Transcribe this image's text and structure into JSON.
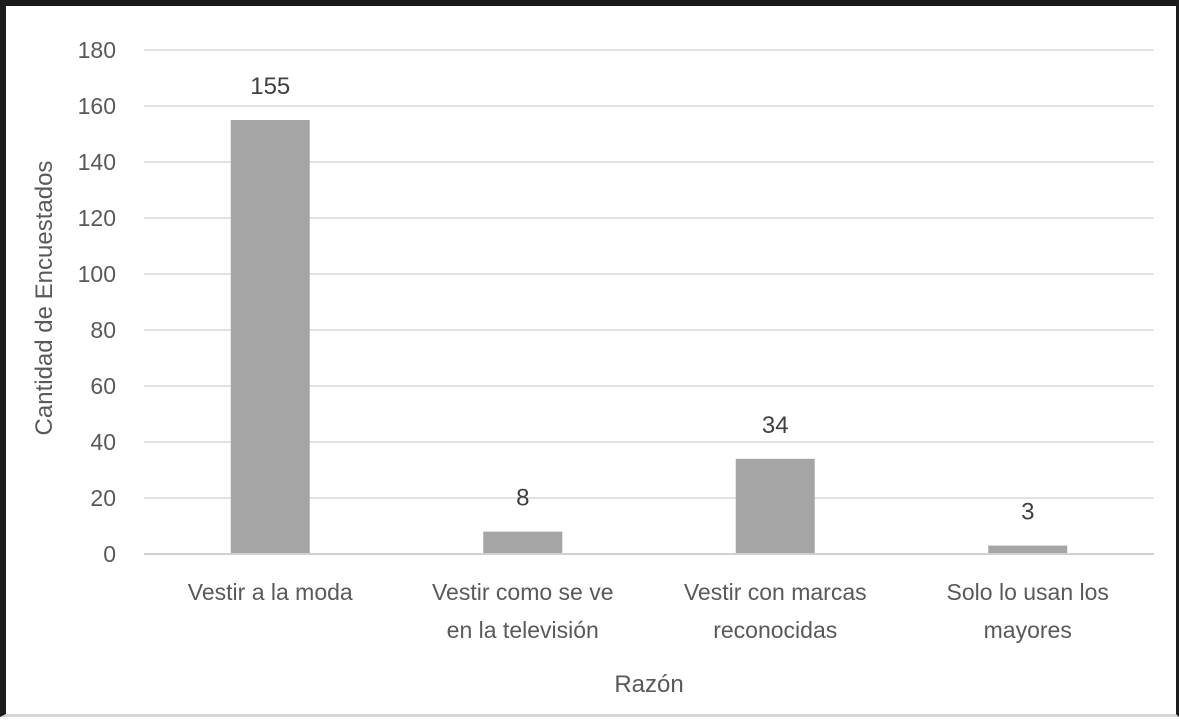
{
  "chart_data": {
    "type": "bar",
    "title": "",
    "xlabel": "Razón",
    "ylabel": "Cantidad de Encuestados",
    "ylim": [
      0,
      180
    ],
    "ytick_step": 20,
    "grid": true,
    "legend": "none",
    "categories": [
      [
        "Vestir a la moda"
      ],
      [
        "Vestir como se ve",
        "en la televisión"
      ],
      [
        "Vestir con marcas",
        "reconocidas"
      ],
      [
        "Solo lo usan los",
        "mayores"
      ]
    ],
    "values": [
      155,
      8,
      34,
      3
    ],
    "data_labels": [
      "155",
      "8",
      "34",
      "3"
    ],
    "colors": {
      "bar": "#a5a5a5",
      "grid": "#d9d9d9",
      "axis": "#d0d0d0",
      "text": "#595959"
    }
  }
}
